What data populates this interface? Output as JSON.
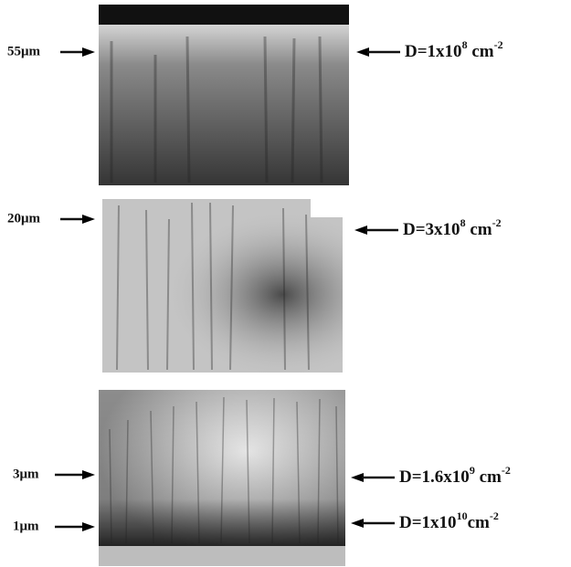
{
  "panels": [
    {
      "left_labels": [
        {
          "text": "55μm"
        }
      ],
      "right_labels": [
        {
          "prefix": "D=1x10",
          "exp": "8",
          "unit": " cm",
          "unit_exp": "-2"
        }
      ]
    },
    {
      "left_labels": [
        {
          "text": "20μm"
        }
      ],
      "right_labels": [
        {
          "prefix": "D=3x10",
          "exp": "8",
          "unit": " cm",
          "unit_exp": "-2"
        }
      ]
    },
    {
      "left_labels": [
        {
          "text": "3μm"
        },
        {
          "text": "1μm"
        }
      ],
      "right_labels": [
        {
          "prefix": "D=1.6x10",
          "exp": "9",
          "unit": " cm",
          "unit_exp": "-2"
        },
        {
          "prefix": "D=1x10",
          "exp": "10",
          "unit": "cm",
          "unit_exp": "-2"
        }
      ]
    }
  ]
}
